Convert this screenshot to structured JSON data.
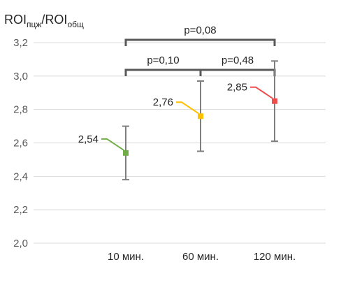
{
  "chart_data": {
    "type": "scatter",
    "title_main": "ROI",
    "title_sub1": "пцж",
    "title_sep": "/ROI",
    "title_sub2": "общ",
    "xlabel": "",
    "ylabel": "",
    "categories": [
      "10 мин.",
      "60 мин.",
      "120 мин."
    ],
    "ylim": [
      2.0,
      3.2
    ],
    "yticks": [
      2.0,
      2.2,
      2.4,
      2.6,
      2.8,
      3.0,
      3.2
    ],
    "ytick_labels": [
      "2,0",
      "2,2",
      "2,4",
      "2,6",
      "2,8",
      "3,0",
      "3,2"
    ],
    "grid": true,
    "points": [
      {
        "category": "10 мин.",
        "value": 2.54,
        "label": "2,54",
        "err_low": 2.38,
        "err_high": 2.7,
        "color": "#70ad47"
      },
      {
        "category": "60 мин.",
        "value": 2.76,
        "label": "2,76",
        "err_low": 2.55,
        "err_high": 2.97,
        "color": "#ffc000"
      },
      {
        "category": "120 мин.",
        "value": 2.85,
        "label": "2,85",
        "err_low": 2.61,
        "err_high": 3.09,
        "color": "#f04e4e"
      }
    ],
    "comparisons": [
      {
        "from": 0,
        "to": 2,
        "label": "p=0,08",
        "level": "top"
      },
      {
        "from": 0,
        "to": 1,
        "label": "p=0,10",
        "level": "lower"
      },
      {
        "from": 1,
        "to": 2,
        "label": "p=0,48",
        "level": "lower"
      }
    ]
  },
  "colors": {
    "grid": "#d9d9d9",
    "axis_text": "#595959",
    "error_bar": "#7f7f7f",
    "bracket": "#595959",
    "text": "#262626"
  }
}
